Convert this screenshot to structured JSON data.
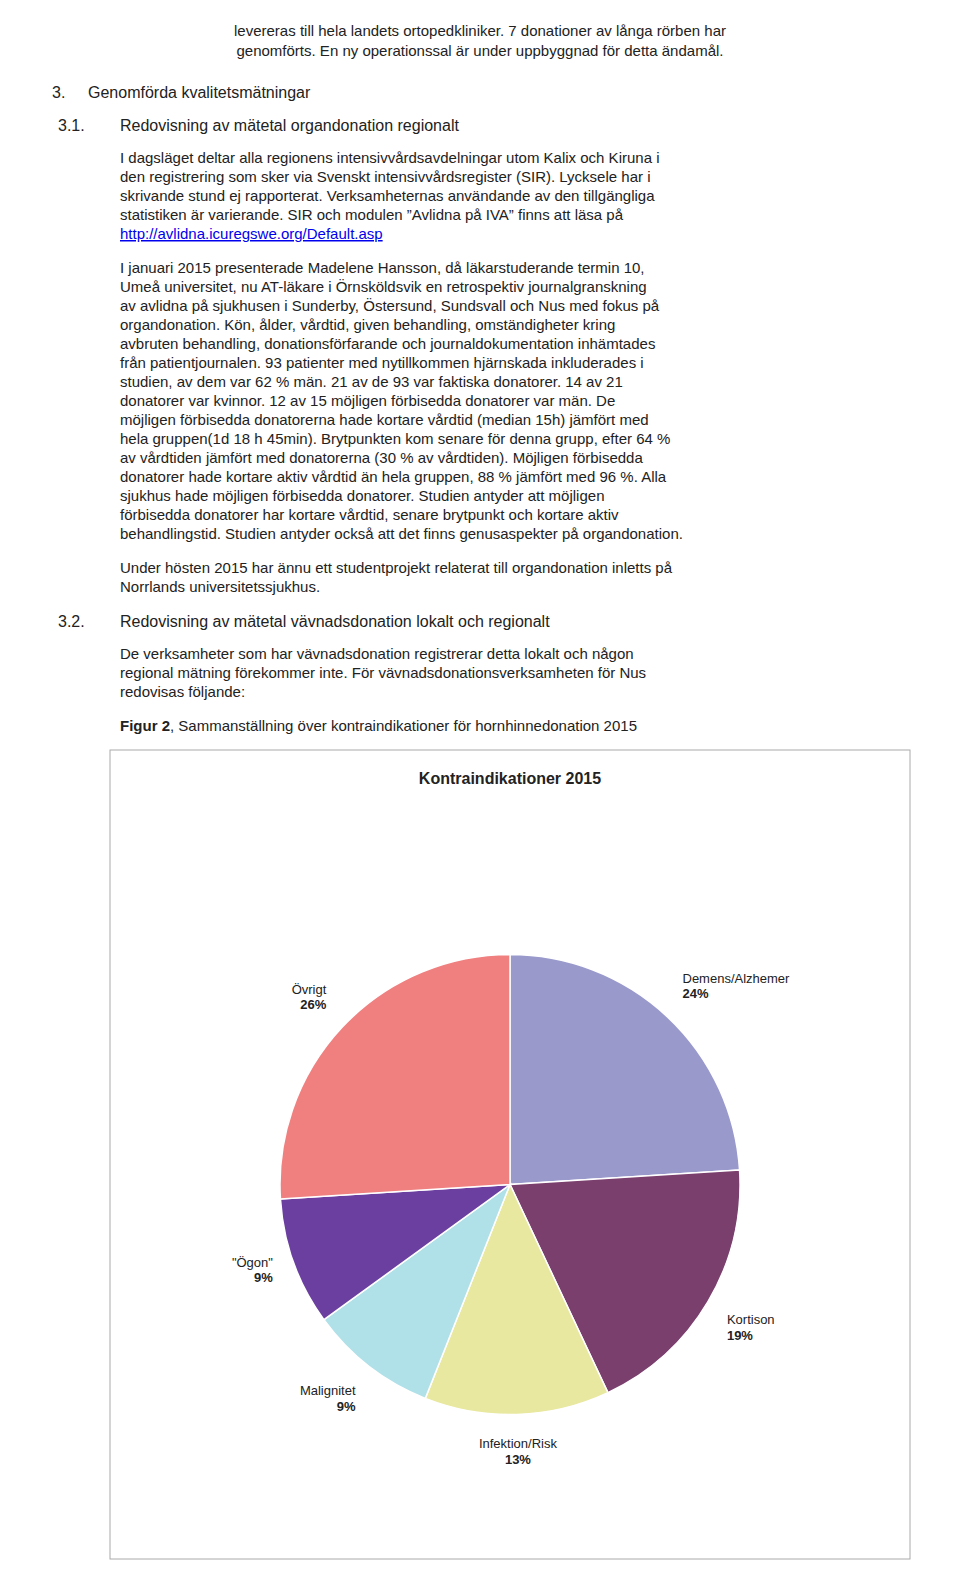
{
  "page": {
    "header_lines": [
      "levereras till hela landets ortopedkliniker. 7 donationer av långa rörben har",
      "genomförts. En ny operationssal är under uppbyggnad för detta ändamål."
    ],
    "chapter": {
      "number": "3.",
      "title": "Genomförda kvalitetsmätningar"
    },
    "sections": [
      {
        "number": "3.1.",
        "title": "Redovisning av mätetal organdonation regionalt",
        "paragraphs": [
          {
            "lines": [
              "I dagsläget deltar alla regionens intensivvårdsavdelningar utom Kalix och Kiruna i",
              "den registrering som sker via Svenskt intensivvårdsregister (SIR). Lycksele har i",
              "skrivande stund ej rapporterat. Verksamheternas användande av den tillgängliga",
              "statistiken är varierande. SIR och modulen ”Avlidna på IVA” finns att läsa på"
            ],
            "link": {
              "text": "http://avlidna.icuregswe.org/Default.asp",
              "color": "#0000EE"
            }
          },
          {
            "lines": [
              "I januari 2015 presenterade Madelene Hansson, då läkarstuderande termin 10,",
              "Umeå universitet, nu AT-läkare i Örnsköldsvik en retrospektiv journalgranskning",
              "av avlidna på sjukhusen i Sunderby, Östersund, Sundsvall och Nus med fokus på",
              "organdonation. Kön, ålder, vårdtid, given behandling, omständigheter kring",
              "avbruten behandling, donationsförfarande och journaldokumentation inhämtades",
              "från patientjournalen. 93 patienter med nytillkommen hjärnskada inkluderades i",
              "studien, av dem var 62 % män. 21 av de 93 var faktiska donatorer. 14 av 21",
              "donatorer var kvinnor. 12 av 15 möjligen förbisedda donatorer var män. De",
              "möjligen förbisedda donatorerna hade kortare vårdtid (median 15h) jämfört med",
              "hela gruppen(1d 18 h 45min). Brytpunkten kom senare för denna grupp, efter 64 %",
              "av vårdtiden jämfört med donatorerna (30 % av vårdtiden). Möjligen förbisedda",
              "donatorer hade kortare aktiv vårdtid än hela gruppen, 88 % jämfört med 96 %. Alla",
              "sjukhus hade möjligen förbisedda donatorer. Studien antyder att möjligen",
              "förbisedda donatorer har kortare vårdtid, senare brytpunkt och kortare aktiv",
              "behandlingstid. Studien antyder också att det finns genusaspekter på organdonation."
            ]
          },
          {
            "lines": [
              "Under hösten 2015 har ännu ett studentprojekt relaterat till organdonation inletts på",
              "Norrlands universitetssjukhus."
            ]
          }
        ]
      },
      {
        "number": "3.2.",
        "title": "Redovisning av mätetal vävnadsdonation lokalt och regionalt",
        "paragraphs": [
          {
            "lines": [
              "De verksamheter som har vävnadsdonation registrerar detta lokalt och någon",
              "regional mätning förekommer inte. För vävnadsdonationsverksamheten för Nus",
              "redovisas följande:"
            ]
          }
        ]
      }
    ],
    "figure_caption": {
      "label": "Figur 2",
      "text": ", Sammanställning över kontraindikationer för hornhinnedonation 2015"
    }
  },
  "chart_data": {
    "type": "pie",
    "title": "Kontraindikationer 2015",
    "categories": [
      "Demens/Alzhemer",
      "Kortison",
      "Infektion/Risk",
      "Malignitet",
      "\"Ögon\"",
      "Övrigt"
    ],
    "values": [
      24,
      19,
      13,
      9,
      9,
      26
    ],
    "value_labels": [
      "24%",
      "19%",
      "13%",
      "9%",
      "9%",
      "26%"
    ],
    "colors": [
      "#9999CC",
      "#7B3F6E",
      "#E8E8A0",
      "#B0E0E8",
      "#6B3FA0",
      "#F08080"
    ],
    "data_labels": true
  }
}
